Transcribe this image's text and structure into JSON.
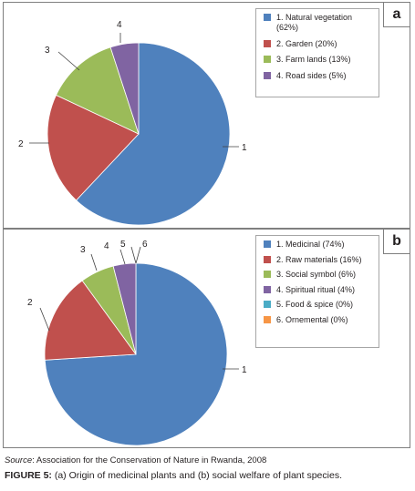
{
  "chart_data": [
    {
      "type": "pie",
      "panel_label": "a",
      "slices": [
        {
          "label_number": "1",
          "legend": "1. Natural vegetation (62%)",
          "legend_line1": "1. Natural vegetation",
          "legend_line2": "(62%)",
          "value": 62,
          "color": "#4f81bd"
        },
        {
          "label_number": "2",
          "legend": "2. Garden (20%)",
          "value": 20,
          "color": "#c0504d"
        },
        {
          "label_number": "3",
          "legend": "3. Farm lands (13%)",
          "value": 13,
          "color": "#9bbb59"
        },
        {
          "label_number": "4",
          "legend": "4. Road sides (5%)",
          "value": 5,
          "color": "#8064a2"
        }
      ],
      "legend_position": "top-right"
    },
    {
      "type": "pie",
      "panel_label": "b",
      "slices": [
        {
          "label_number": "1",
          "legend": "1. Medicinal (74%)",
          "value": 74,
          "color": "#4f81bd"
        },
        {
          "label_number": "2",
          "legend": "2. Raw materials (16%)",
          "value": 16,
          "color": "#c0504d"
        },
        {
          "label_number": "3",
          "legend": "3. Social symbol (6%)",
          "value": 6,
          "color": "#9bbb59"
        },
        {
          "label_number": "4",
          "legend": "4. Spiritual ritual (4%)",
          "value": 4,
          "color": "#8064a2"
        },
        {
          "label_number": "5",
          "legend": "5. Food & spice (0%)",
          "value": 0,
          "color": "#4bacc6"
        },
        {
          "label_number": "6",
          "legend": "6. Ornemental (0%)",
          "value": 0,
          "color": "#f79646"
        }
      ],
      "legend_position": "top-right"
    }
  ],
  "footer": {
    "source_label": "Source",
    "source_text": ": Association for the Conservation of Nature in Rwanda, 2008",
    "caption_label": "FIGURE 5:",
    "caption_text": " (a) Origin of medicinal plants and (b) social welfare of plant species."
  }
}
